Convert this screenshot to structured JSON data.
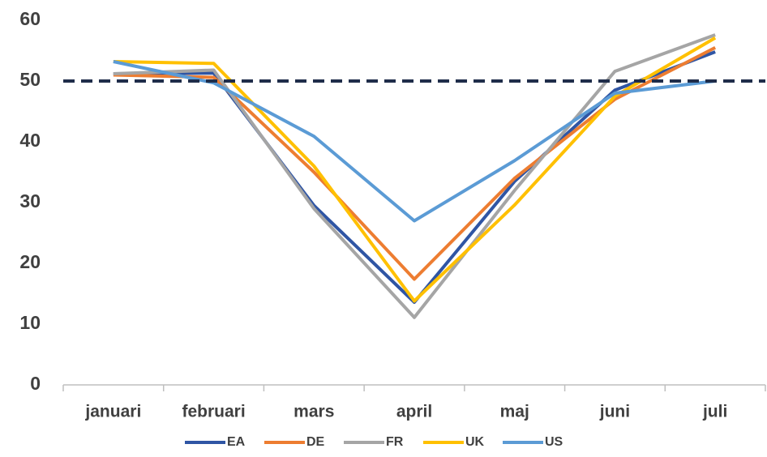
{
  "chart_data": {
    "type": "line",
    "categories": [
      "januari",
      "februari",
      "mars",
      "april",
      "maj",
      "juni",
      "juli"
    ],
    "series": [
      {
        "name": "EA",
        "color": "#2f55a4",
        "values": [
          51.2,
          51.3,
          29.5,
          13.6,
          33.5,
          48.5,
          54.8
        ]
      },
      {
        "name": "DE",
        "color": "#ed7d31",
        "values": [
          51.0,
          50.6,
          35.0,
          17.4,
          34.0,
          47.0,
          55.5
        ]
      },
      {
        "name": "FR",
        "color": "#a5a5a5",
        "values": [
          51.2,
          51.8,
          29.0,
          11.1,
          32.0,
          51.6,
          57.6
        ]
      },
      {
        "name": "UK",
        "color": "#ffc000",
        "values": [
          53.2,
          52.9,
          36.0,
          13.8,
          29.6,
          47.5,
          57.1
        ]
      },
      {
        "name": "US",
        "color": "#5b9bd5",
        "values": [
          53.2,
          49.7,
          40.9,
          27.0,
          36.9,
          48.0,
          50.0
        ]
      }
    ],
    "reference_line": {
      "value": 50,
      "color": "#1f2d4a"
    },
    "ylim": [
      0,
      60
    ],
    "yticks": [
      0,
      10,
      20,
      30,
      40,
      50,
      60
    ],
    "grid": false,
    "legend": "bottom"
  }
}
